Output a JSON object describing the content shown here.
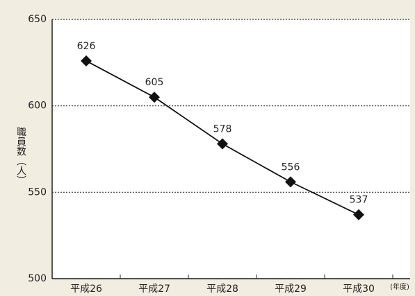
{
  "chart_data": {
    "type": "line",
    "y_label": "職員数（人）",
    "x_unit": "(年度)",
    "categories": [
      "平成26",
      "平成27",
      "平成28",
      "平成29",
      "平成30"
    ],
    "series": [
      {
        "name": "職員数",
        "color": "#111111",
        "values": [
          626,
          605,
          578,
          556,
          537
        ]
      }
    ],
    "ylim": [
      500,
      650
    ],
    "yticks": [
      500,
      550,
      600,
      650
    ],
    "grid": true
  }
}
